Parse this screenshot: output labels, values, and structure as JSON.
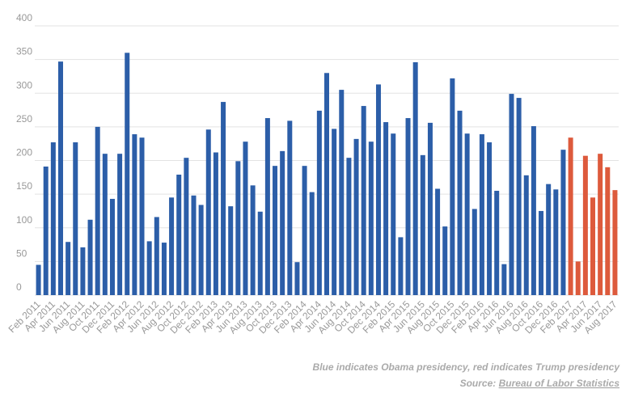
{
  "chart_data": {
    "type": "bar",
    "categories": [
      "Feb 2011",
      null,
      "Apr 2011",
      null,
      "Jun 2011",
      null,
      "Aug 2011",
      null,
      "Oct 2011",
      null,
      "Dec 2011",
      null,
      "Feb 2012",
      null,
      "Apr 2012",
      null,
      "Jun 2012",
      null,
      "Aug 2012",
      null,
      "Oct 2012",
      null,
      "Dec 2012",
      null,
      "Feb 2013",
      null,
      "Apr 2013",
      null,
      "Jun 2013",
      null,
      "Aug 2013",
      null,
      "Oct 2013",
      null,
      "Dec 2013",
      null,
      "Feb 2014",
      null,
      "Apr 2014",
      null,
      "Jun 2014",
      null,
      "Aug 2014",
      null,
      "Oct 2014",
      null,
      "Dec 2014",
      null,
      "Feb 2015",
      null,
      "Apr 2015",
      null,
      "Jun 2015",
      null,
      "Aug 2015",
      null,
      "Oct 2015",
      null,
      "Dec 2015",
      null,
      "Feb 2016",
      null,
      "Apr 2016",
      null,
      "Jun 2016",
      null,
      "Aug 2016",
      null,
      "Oct 2016",
      null,
      "Dec 2016",
      null,
      "Feb 2017",
      null,
      "Apr 2017",
      null,
      "Jun 2017",
      null,
      "Aug 2017"
    ],
    "values": [
      45,
      191,
      227,
      347,
      79,
      227,
      71,
      112,
      250,
      210,
      143,
      210,
      360,
      239,
      234,
      80,
      116,
      78,
      145,
      179,
      204,
      148,
      134,
      246,
      212,
      287,
      132,
      199,
      228,
      163,
      124,
      263,
      192,
      214,
      259,
      49,
      192,
      153,
      274,
      330,
      247,
      305,
      204,
      232,
      281,
      228,
      313,
      257,
      240,
      86,
      263,
      346,
      208,
      256,
      158,
      102,
      322,
      274,
      240,
      128,
      239,
      227,
      155,
      46,
      299,
      293,
      178,
      251,
      125,
      165,
      157,
      216,
      234,
      50,
      207,
      145,
      210,
      190,
      156
    ],
    "colors": [
      "#2c5ea8",
      "#2c5ea8",
      "#2c5ea8",
      "#2c5ea8",
      "#2c5ea8",
      "#2c5ea8",
      "#2c5ea8",
      "#2c5ea8",
      "#2c5ea8",
      "#2c5ea8",
      "#2c5ea8",
      "#2c5ea8",
      "#2c5ea8",
      "#2c5ea8",
      "#2c5ea8",
      "#2c5ea8",
      "#2c5ea8",
      "#2c5ea8",
      "#2c5ea8",
      "#2c5ea8",
      "#2c5ea8",
      "#2c5ea8",
      "#2c5ea8",
      "#2c5ea8",
      "#2c5ea8",
      "#2c5ea8",
      "#2c5ea8",
      "#2c5ea8",
      "#2c5ea8",
      "#2c5ea8",
      "#2c5ea8",
      "#2c5ea8",
      "#2c5ea8",
      "#2c5ea8",
      "#2c5ea8",
      "#2c5ea8",
      "#2c5ea8",
      "#2c5ea8",
      "#2c5ea8",
      "#2c5ea8",
      "#2c5ea8",
      "#2c5ea8",
      "#2c5ea8",
      "#2c5ea8",
      "#2c5ea8",
      "#2c5ea8",
      "#2c5ea8",
      "#2c5ea8",
      "#2c5ea8",
      "#2c5ea8",
      "#2c5ea8",
      "#2c5ea8",
      "#2c5ea8",
      "#2c5ea8",
      "#2c5ea8",
      "#2c5ea8",
      "#2c5ea8",
      "#2c5ea8",
      "#2c5ea8",
      "#2c5ea8",
      "#2c5ea8",
      "#2c5ea8",
      "#2c5ea8",
      "#2c5ea8",
      "#2c5ea8",
      "#2c5ea8",
      "#2c5ea8",
      "#2c5ea8",
      "#2c5ea8",
      "#2c5ea8",
      "#2c5ea8",
      "#2c5ea8",
      "#dd5a3c",
      "#dd5a3c",
      "#dd5a3c",
      "#dd5a3c",
      "#dd5a3c",
      "#dd5a3c",
      "#dd5a3c"
    ],
    "ylim": [
      0,
      400
    ],
    "yticks": [
      0,
      50,
      100,
      150,
      200,
      250,
      300,
      350,
      400
    ],
    "grid": true,
    "note": "Blue indicates Obama presidency, red indicates Trump presidency",
    "source_prefix": "Source:",
    "source_link": "Bureau of Labor Statistics"
  }
}
